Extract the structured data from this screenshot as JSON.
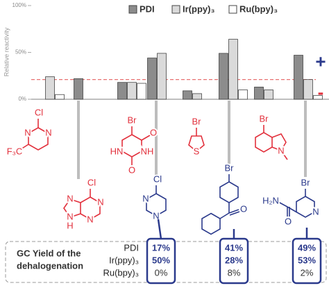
{
  "chart_data": {
    "type": "bar",
    "y_label": "Relative reactivity",
    "categories": [
      null,
      null,
      null,
      null,
      null,
      null,
      null,
      null
    ],
    "series": [
      {
        "name": "PDI",
        "color": "#8c8c8c",
        "values": [
          null,
          22,
          18,
          44,
          9,
          49,
          13,
          47
        ]
      },
      {
        "name": "Ir(ppy)₃",
        "color": "#dadada",
        "values": [
          24,
          null,
          18,
          49,
          6,
          64,
          10,
          21
        ]
      },
      {
        "name": "Ru(bpy)₃",
        "color": "#ffffff",
        "values": [
          5,
          null,
          17,
          null,
          null,
          10,
          null,
          4
        ]
      }
    ],
    "ylim": [
      0,
      100
    ],
    "yticks": [
      {
        "value": 0,
        "label": "0%"
      },
      {
        "value": 50,
        "label": "50%"
      },
      {
        "value": 100,
        "label": "100%"
      }
    ],
    "threshold": 21,
    "annotations": [
      "+",
      "-"
    ],
    "legend": "top"
  },
  "molecules": [
    {
      "atoms": [
        "Cl",
        "N",
        "N",
        "F₃C"
      ]
    },
    {
      "atoms": [
        "Cl",
        "N",
        "N",
        "N",
        "N",
        "H"
      ]
    },
    {
      "atoms": [
        "Br",
        "O",
        "NH",
        "HN",
        "O"
      ]
    },
    {
      "atoms": [
        "Cl",
        "N",
        "N"
      ]
    },
    {
      "atoms": [
        "Br",
        "S"
      ]
    },
    {
      "atoms": [
        "Br",
        "O"
      ]
    },
    {
      "atoms": [
        "Br",
        "N"
      ]
    },
    {
      "atoms": [
        "Br",
        "N",
        "H₂N",
        "O"
      ]
    }
  ],
  "yield_table": {
    "title": [
      "GC Yield of the",
      "dehalogenation"
    ],
    "rows": [
      "PDI",
      "Ir(ppy)₃",
      "Ru(bpy)₃"
    ],
    "columns": [
      [
        "17%",
        "50%",
        "0%"
      ],
      [
        "41%",
        "28%",
        "8%"
      ],
      [
        "49%",
        "53%",
        "2%"
      ]
    ]
  }
}
